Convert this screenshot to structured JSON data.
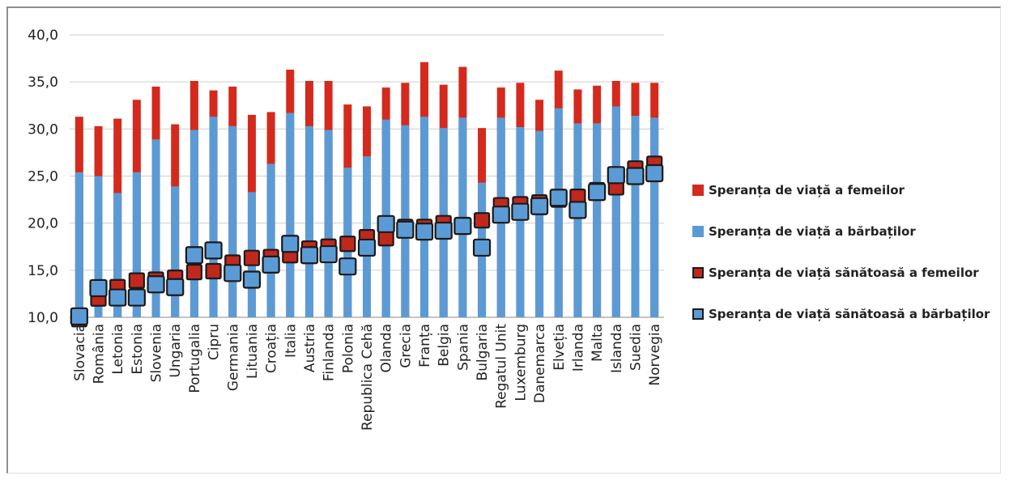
{
  "chart_data": {
    "type": "bar",
    "title": "",
    "xlabel": "",
    "ylabel": "",
    "ylim": [
      10,
      40
    ],
    "yticks": [
      "10,0",
      "15,0",
      "20,0",
      "25,0",
      "30,0",
      "35,0",
      "40,0"
    ],
    "grid": true,
    "legend_position": "right",
    "categories": [
      "Slovacia",
      "România",
      "Letonia",
      "Estonia",
      "Slovenia",
      "Ungaria",
      "Portugalia",
      "Cipru",
      "Germania",
      "Lituania",
      "Croația",
      "Italia",
      "Austria",
      "Finlanda",
      "Polonia",
      "Republica Cehă",
      "Olanda",
      "Grecia",
      "Franța",
      "Belgia",
      "Spania",
      "Bulgaria",
      "Regatul Unit",
      "Luxemburg",
      "Danemarca",
      "Elveția",
      "Irlanda",
      "Malta",
      "Islanda",
      "Suedia",
      "Norvegia"
    ],
    "series": [
      {
        "name": "Speranța de viață a femeilor",
        "color": "#d42a1d",
        "values": [
          31.3,
          30.3,
          31.1,
          33.1,
          34.5,
          30.5,
          35.1,
          34.1,
          34.5,
          31.5,
          31.8,
          36.3,
          35.1,
          35.1,
          32.6,
          32.4,
          34.4,
          34.9,
          37.1,
          34.7,
          36.6,
          30.1,
          34.4,
          34.9,
          33.1,
          36.2,
          34.2,
          34.6,
          35.1,
          34.9,
          34.9
        ]
      },
      {
        "name": "Speranța de viață a bărbaților",
        "color": "#5b9bd5",
        "values": [
          25.4,
          25.0,
          23.2,
          25.4,
          28.9,
          23.9,
          29.9,
          31.3,
          30.3,
          23.3,
          26.3,
          31.7,
          30.3,
          29.9,
          25.9,
          27.1,
          31.0,
          30.4,
          31.3,
          30.1,
          31.2,
          24.3,
          31.2,
          30.2,
          29.8,
          32.2,
          30.6,
          30.6,
          32.4,
          31.4,
          31.2
        ]
      },
      {
        "name": "Speranța de viață sănătoasă a femeilor",
        "color": "#c0281c",
        "values": [
          9.8,
          12.0,
          13.2,
          13.9,
          14.0,
          14.2,
          14.8,
          14.9,
          15.8,
          16.3,
          16.4,
          16.6,
          17.3,
          17.5,
          17.8,
          18.5,
          18.4,
          19.6,
          19.6,
          20.0,
          19.8,
          20.3,
          21.9,
          22.0,
          22.2,
          22.5,
          22.8,
          23.5,
          23.8,
          25.8,
          26.3
        ]
      },
      {
        "name": "Speranța de viață sănătoasă a bărbaților",
        "color": "#5b9bd5",
        "values": [
          10.1,
          13.1,
          12.1,
          12.1,
          13.5,
          13.2,
          16.6,
          17.1,
          14.7,
          14.0,
          15.6,
          17.8,
          16.6,
          16.7,
          15.4,
          17.4,
          19.9,
          19.3,
          19.1,
          19.2,
          19.7,
          17.4,
          20.9,
          21.2,
          21.8,
          22.7,
          21.4,
          23.3,
          25.1,
          25.0,
          25.3
        ]
      }
    ]
  }
}
